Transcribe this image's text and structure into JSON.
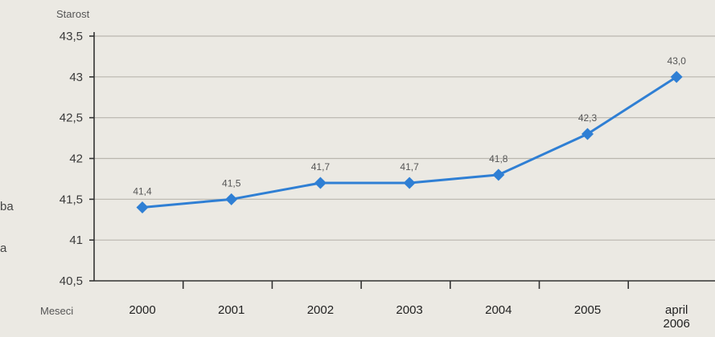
{
  "chart_data": {
    "type": "line",
    "ylabel": "Starost",
    "xlabel": "Meseci",
    "categories": [
      "2000",
      "2001",
      "2002",
      "2003",
      "2004",
      "2005",
      "april 2006"
    ],
    "category_lines": [
      [
        "2000"
      ],
      [
        "2001"
      ],
      [
        "2002"
      ],
      [
        "2003"
      ],
      [
        "2004"
      ],
      [
        "2005"
      ],
      [
        "april",
        "2006"
      ]
    ],
    "series": [
      {
        "values": [
          41.4,
          41.5,
          41.7,
          41.7,
          41.8,
          42.3,
          43.0
        ]
      }
    ],
    "data_labels": [
      "41,4",
      "41,5",
      "41,7",
      "41,7",
      "41,8",
      "42,3",
      "43,0"
    ],
    "ylim": [
      40.5,
      43.5
    ],
    "yticks": [
      40.5,
      41,
      41.5,
      42,
      42.5,
      43,
      43.5
    ],
    "ytick_labels": [
      "40,5",
      "41",
      "41,5",
      "42",
      "42,5",
      "43",
      "43,5"
    ],
    "grid": true,
    "line_color": "#2f7fd4",
    "marker": "diamond"
  },
  "edge_fragments": [
    "ba",
    "a"
  ]
}
